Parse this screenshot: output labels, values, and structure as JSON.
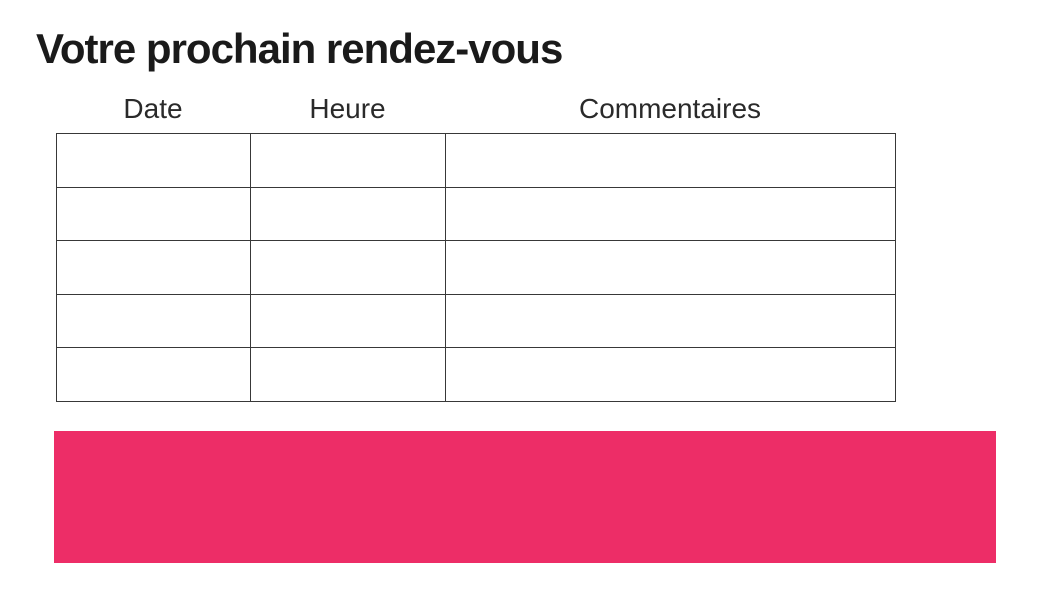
{
  "page": {
    "title": "Votre prochain rendez-vous",
    "background": "#ffffff"
  },
  "appointment_table": {
    "columns": [
      {
        "id": "date",
        "label": "Date"
      },
      {
        "id": "heure",
        "label": "Heure"
      },
      {
        "id": "commentaires",
        "label": "Commentaires"
      }
    ],
    "rows": [
      {
        "date": "",
        "heure": "",
        "commentaires": ""
      },
      {
        "date": "",
        "heure": "",
        "commentaires": ""
      },
      {
        "date": "",
        "heure": "",
        "commentaires": ""
      },
      {
        "date": "",
        "heure": "",
        "commentaires": ""
      },
      {
        "date": "",
        "heure": "",
        "commentaires": ""
      }
    ]
  },
  "footer_banner": {
    "text": "",
    "color": "#ED2D67"
  },
  "colors": {
    "accent": "#ED2D67",
    "table_border": "#383838",
    "title_text": "#1a1a1a",
    "header_text": "#2a2a2a"
  }
}
